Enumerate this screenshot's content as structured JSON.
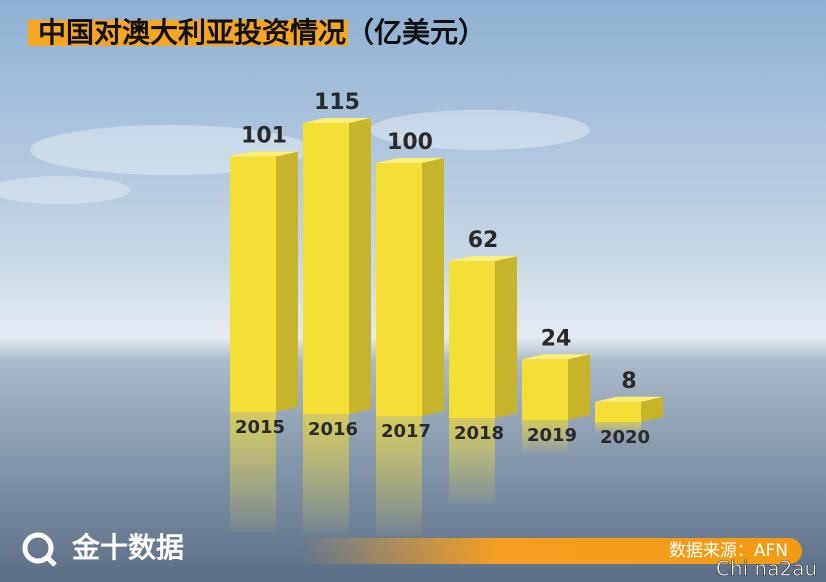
{
  "title": "中国对澳大利亚投资情况（亿美元）",
  "logo": "金十数据",
  "source": "数据来源：AFN",
  "watermark": "Chi na2au",
  "chart_data": {
    "type": "bar",
    "categories": [
      "2015",
      "2016",
      "2017",
      "2018",
      "2019",
      "2020"
    ],
    "values": [
      101,
      115,
      100,
      62,
      24,
      8
    ],
    "color": "#f3df36"
  }
}
